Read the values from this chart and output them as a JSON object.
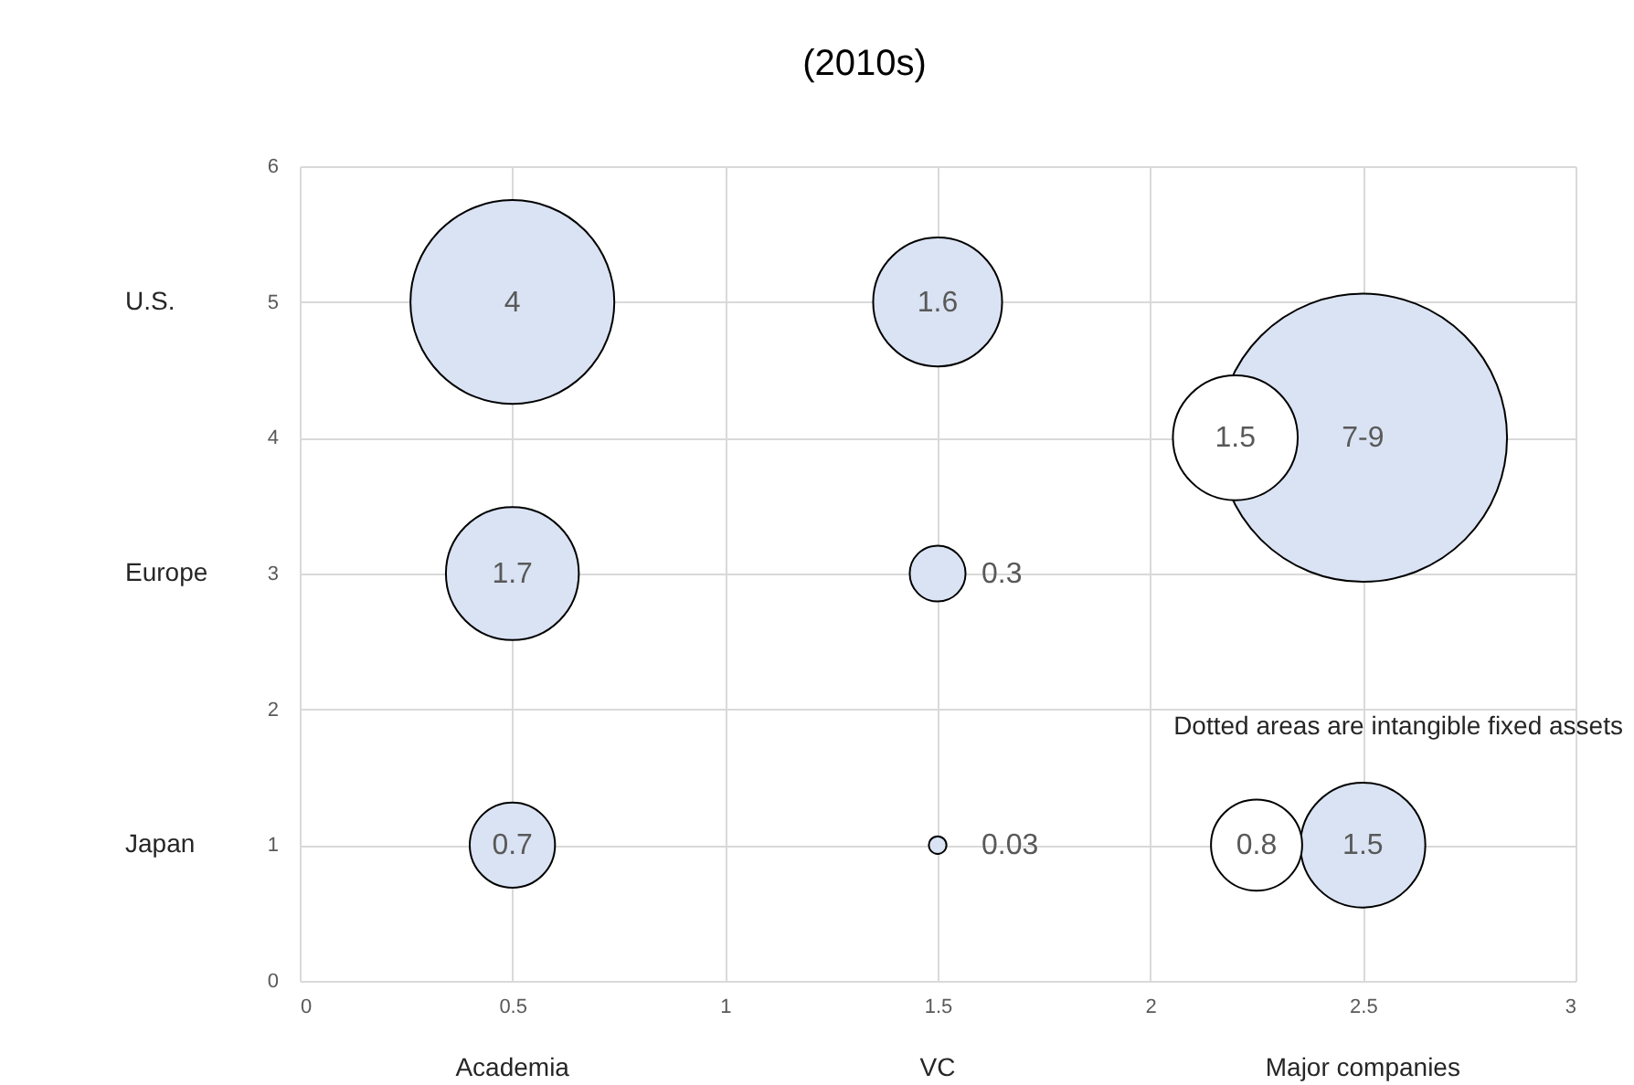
{
  "chart_data": {
    "type": "bubble",
    "title": "(2010s)",
    "xlim": [
      0,
      3
    ],
    "xticks": [
      0,
      0.5,
      1,
      1.5,
      2,
      2.5,
      3
    ],
    "ylim": [
      0,
      6
    ],
    "yticks": [
      0,
      1,
      2,
      3,
      4,
      5,
      6
    ],
    "grid": true,
    "y2_categories": [
      "U.S.",
      "Europe",
      "Japan"
    ],
    "series": [
      {
        "color": "#dae3f3",
        "x": [
          0.5,
          1.5,
          2.5,
          0.5,
          1.5,
          0.5,
          1.5,
          2.5
        ],
        "values": [
          5,
          5,
          4,
          3,
          3,
          1,
          1,
          1
        ],
        "sizes": [
          0.5,
          0.2,
          1,
          0.2125,
          0.0375,
          0.0875,
          0.00375,
          0.1875
        ]
      },
      {
        "color": "#ffffff",
        "x": [
          2.2,
          2.25
        ],
        "values": [
          4,
          1
        ],
        "sizes": [
          0.1875,
          0.1
        ]
      }
    ],
    "annotations": [
      {
        "text": "4",
        "x": 0.5,
        "y": 5
      },
      {
        "text": "1.6",
        "x": 1.5,
        "y": 5
      },
      {
        "text": "7-9",
        "x": 2.5,
        "y": 4
      },
      {
        "text": "1.7",
        "x": 0.5,
        "y": 3
      },
      {
        "text": "0.3",
        "x": 1.5,
        "y": 3
      },
      {
        "text": "0.7",
        "x": 0.5,
        "y": 1
      },
      {
        "text": "0.03",
        "x": 1.5,
        "y": 1
      },
      {
        "text": "1.5",
        "x": 2.5,
        "y": 1
      },
      {
        "text": "1.5",
        "x": 2.2,
        "y": 4
      },
      {
        "text": "0.8",
        "x": 2.25,
        "y": 1
      },
      "Academia",
      "VC",
      "Major companies",
      "Dotted areas are intangible fixed assets"
    ]
  }
}
